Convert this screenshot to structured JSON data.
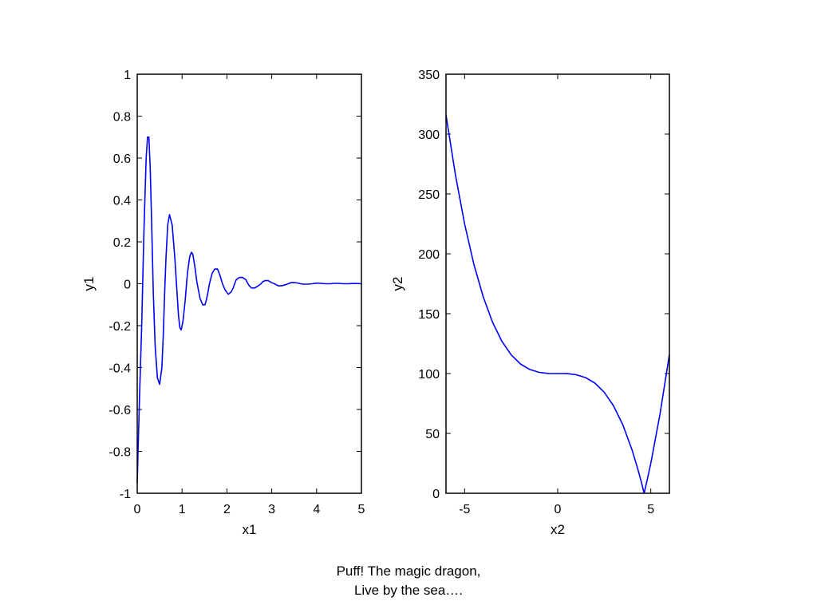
{
  "chart_data": [
    {
      "type": "line",
      "xlabel": "x1",
      "ylabel": "y1",
      "xlim": [
        0,
        5
      ],
      "ylim": [
        -1,
        1
      ],
      "xticks": [
        "0",
        "1",
        "2",
        "3",
        "4",
        "5"
      ],
      "yticks": [
        "-1",
        "-0.8",
        "-0.6",
        "-0.4",
        "-0.2",
        "0",
        "0.2",
        "0.4",
        "0.6",
        "0.8",
        "1"
      ],
      "grid": false,
      "series": [
        {
          "color": "#0000ff",
          "x": [
            0,
            0.05,
            0.1,
            0.15,
            0.2,
            0.23,
            0.26,
            0.29,
            0.32,
            0.36,
            0.4,
            0.45,
            0.5,
            0.55,
            0.58,
            0.61,
            0.64,
            0.68,
            0.72,
            0.78,
            0.84,
            0.89,
            0.92,
            0.95,
            0.98,
            1.02,
            1.07,
            1.12,
            1.17,
            1.21,
            1.24,
            1.28,
            1.33,
            1.4,
            1.46,
            1.51,
            1.54,
            1.57,
            1.61,
            1.67,
            1.73,
            1.79,
            1.83,
            1.86,
            1.9,
            1.96,
            2.03,
            2.09,
            2.14,
            2.17,
            2.21,
            2.28,
            2.35,
            2.42,
            2.47,
            2.5,
            2.55,
            2.62,
            2.7,
            2.76,
            2.8,
            2.85,
            2.92,
            3.0,
            3.06,
            3.1,
            3.15,
            3.22,
            3.3,
            3.37,
            3.42,
            3.48,
            3.56,
            3.64,
            3.7,
            3.8,
            3.9,
            4.0,
            4.1,
            4.2,
            4.3,
            4.4,
            4.5,
            4.6,
            4.7,
            4.8,
            4.9,
            5.0
          ],
          "y": [
            -0.95,
            -0.55,
            -0.2,
            0.25,
            0.6,
            0.7,
            0.7,
            0.55,
            0.3,
            -0.05,
            -0.3,
            -0.45,
            -0.48,
            -0.4,
            -0.25,
            -0.05,
            0.12,
            0.28,
            0.33,
            0.28,
            0.12,
            -0.05,
            -0.15,
            -0.21,
            -0.22,
            -0.18,
            -0.08,
            0.05,
            0.13,
            0.15,
            0.14,
            0.09,
            0.01,
            -0.07,
            -0.1,
            -0.1,
            -0.08,
            -0.05,
            0.0,
            0.05,
            0.07,
            0.07,
            0.05,
            0.03,
            0.0,
            -0.03,
            -0.05,
            -0.04,
            -0.02,
            0.0,
            0.02,
            0.03,
            0.03,
            0.02,
            0.0,
            -0.01,
            -0.02,
            -0.02,
            -0.01,
            0.0,
            0.01,
            0.015,
            0.015,
            0.005,
            0.0,
            -0.005,
            -0.01,
            -0.01,
            -0.005,
            0.0,
            0.005,
            0.006,
            0.004,
            0.0,
            -0.002,
            -0.002,
            0.0,
            0.003,
            0.002,
            0.0,
            0.0,
            0.002,
            0.002,
            0.0,
            0.0,
            0.001,
            0.001,
            0.0
          ]
        }
      ]
    },
    {
      "type": "line",
      "xlabel": "x2",
      "ylabel": "y2",
      "xlim": [
        -6,
        6
      ],
      "ylim": [
        0,
        350
      ],
      "xticks": [
        "-5",
        "0",
        "5"
      ],
      "xtick_values": [
        -5,
        0,
        5
      ],
      "yticks": [
        "0",
        "50",
        "100",
        "150",
        "200",
        "250",
        "300",
        "350"
      ],
      "grid": false,
      "series": [
        {
          "color": "#0000ff",
          "x": [
            -6,
            -5.5,
            -5,
            -4.5,
            -4,
            -3.5,
            -3,
            -2.5,
            -2,
            -1.5,
            -1,
            -0.5,
            0,
            0.5,
            1,
            1.5,
            2,
            2.5,
            3,
            3.5,
            4,
            4.3,
            4.5,
            4.64,
            4.8,
            5,
            5.5,
            6
          ],
          "y": [
            316,
            266.4,
            225,
            191.1,
            164,
            142.9,
            127,
            115.6,
            108,
            103.4,
            101,
            100.1,
            100,
            99.9,
            99,
            96.6,
            92,
            84.4,
            73,
            57.1,
            36,
            20.5,
            8.9,
            0,
            10.6,
            25,
            66.4,
            116
          ]
        }
      ]
    }
  ],
  "caption": {
    "line1": "Puff! The magic dragon,",
    "line2": "Live by the sea…."
  }
}
